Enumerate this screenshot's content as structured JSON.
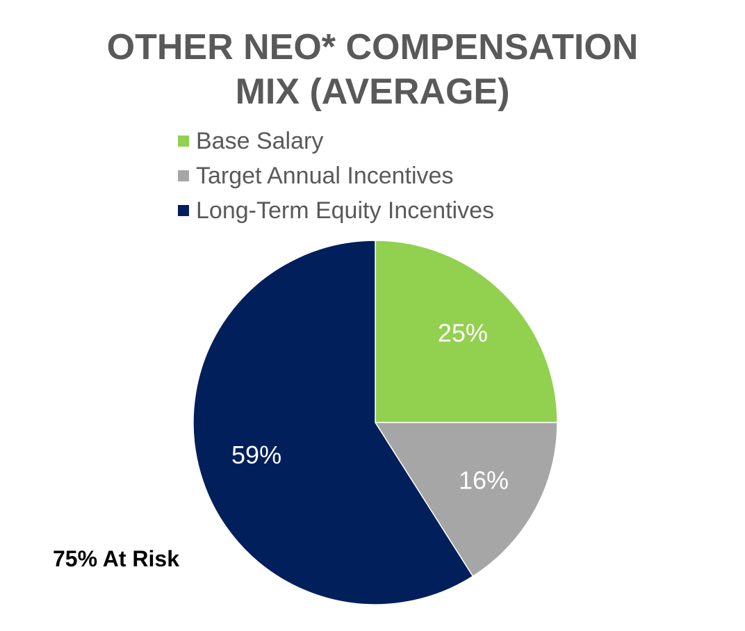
{
  "title_lines": [
    "OTHER NEO* COMPENSATION",
    "MIX (AVERAGE)"
  ],
  "chart_data": {
    "type": "pie",
    "title": "OTHER NEO* COMPENSATION MIX (AVERAGE)",
    "slices": [
      {
        "name": "Base Salary",
        "value": 25,
        "label": "25%",
        "color": "#92d050"
      },
      {
        "name": "Target Annual Incentives",
        "value": 16,
        "label": "16%",
        "color": "#a6a6a6"
      },
      {
        "name": "Long-Term Equity Incentives",
        "value": 59,
        "label": "59%",
        "color": "#001f5b"
      }
    ],
    "start_angle": "12 o'clock",
    "direction": "clockwise",
    "legend": "top"
  },
  "annotation": "75% At Risk"
}
